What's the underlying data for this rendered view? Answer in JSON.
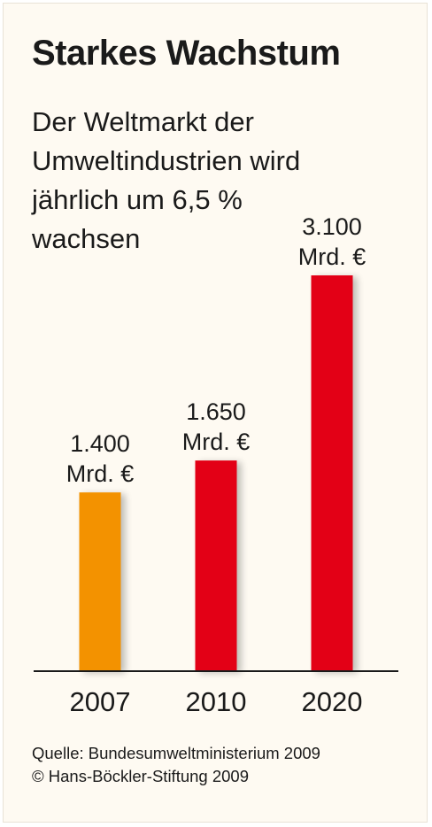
{
  "chart_data": {
    "type": "bar",
    "title": "Starkes Wachstum",
    "subtitle": "Der Weltmarkt der Umweltindustrien wird jährlich um 6,5 % wachsen",
    "categories": [
      "2007",
      "2010",
      "2020"
    ],
    "values": [
      1400,
      1650,
      3100
    ],
    "data_labels": [
      [
        "1.400",
        "Mrd. €"
      ],
      [
        "1.650",
        "Mrd. €"
      ],
      [
        "3.100",
        "Mrd. €"
      ]
    ],
    "unit": "Mrd. €",
    "ylim": [
      0,
      3100
    ],
    "grid": false,
    "legend": "none",
    "colors": [
      "#f39200",
      "#e30613",
      "#e30613"
    ]
  },
  "footer": {
    "source": "Quelle: Bundesumweltministerium 2009",
    "copyright": "© Hans-Böckler-Stiftung 2009"
  }
}
